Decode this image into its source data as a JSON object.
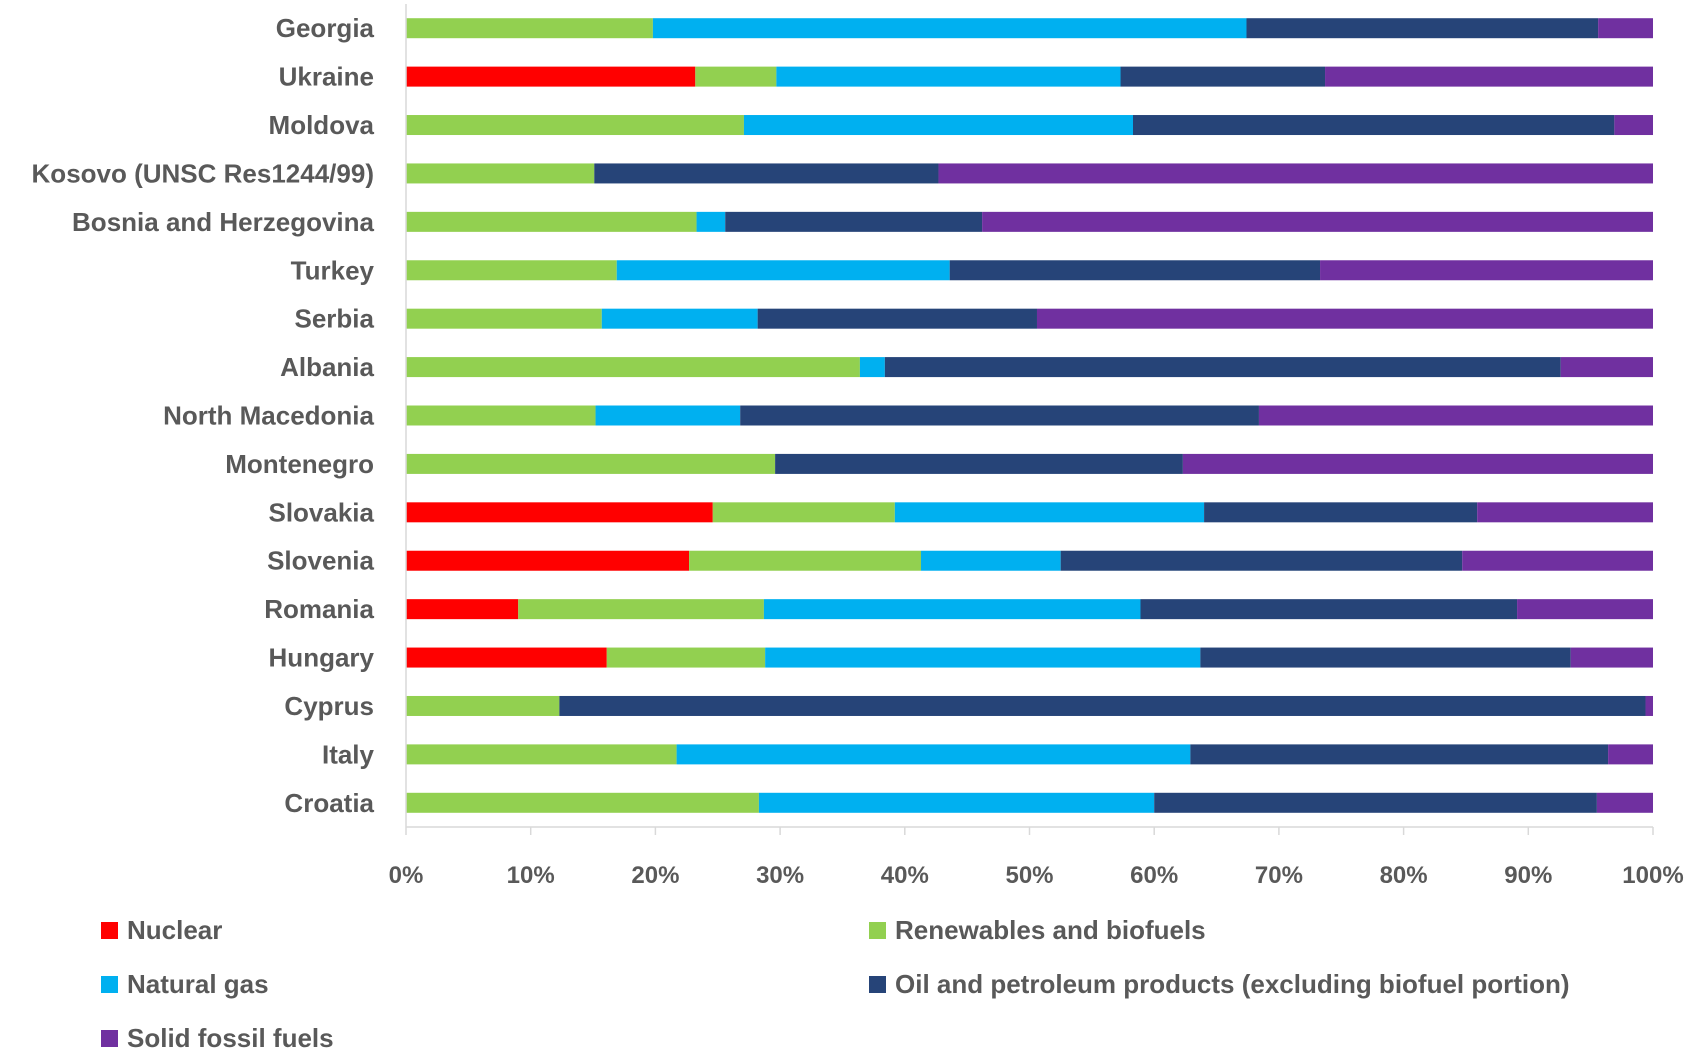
{
  "chart_data": {
    "type": "bar",
    "orientation": "horizontal",
    "stacked": "percent",
    "title": "",
    "xlabel": "",
    "ylabel": "",
    "xlim": [
      0,
      100
    ],
    "xticks": [
      "0%",
      "10%",
      "20%",
      "30%",
      "40%",
      "50%",
      "60%",
      "70%",
      "80%",
      "90%",
      "100%"
    ],
    "grid": false,
    "legend_position": "bottom",
    "categories": [
      "Georgia",
      "Ukraine",
      "Moldova",
      "Kosovo (UNSC Res1244/99)",
      "Bosnia and Herzegovina",
      "Turkey",
      "Serbia",
      "Albania",
      "North Macedonia",
      "Montenegro",
      "Slovakia",
      "Slovenia",
      "Romania",
      "Hungary",
      "Cyprus",
      "Italy",
      "Croatia"
    ],
    "series": [
      {
        "name": "Nuclear",
        "color": "#ff0000",
        "values": [
          0,
          23.2,
          0,
          0,
          0,
          0,
          0,
          0,
          0,
          0,
          24.6,
          22.7,
          9.0,
          16.1,
          0,
          0,
          0
        ]
      },
      {
        "name": "Renewables and biofuels",
        "color": "#92d050",
        "values": [
          19.8,
          6.5,
          27.1,
          15.1,
          23.3,
          16.9,
          15.7,
          36.4,
          15.2,
          29.6,
          14.6,
          18.6,
          19.7,
          12.7,
          12.3,
          21.7,
          28.3
        ]
      },
      {
        "name": "Natural gas",
        "color": "#00b0f0",
        "values": [
          47.6,
          27.6,
          31.2,
          0,
          2.3,
          26.7,
          12.5,
          2.0,
          11.6,
          0,
          24.8,
          11.2,
          30.2,
          34.9,
          0,
          41.2,
          31.7
        ]
      },
      {
        "name": "Oil and petroleum products (excluding biofuel portion)",
        "color": "#264478",
        "values": [
          28.2,
          16.4,
          38.6,
          27.6,
          20.6,
          29.7,
          22.4,
          54.2,
          41.6,
          32.7,
          21.9,
          32.2,
          30.2,
          29.7,
          87.1,
          33.5,
          35.5
        ]
      },
      {
        "name": "Solid fossil fuels",
        "color": "#7030a0",
        "values": [
          4.4,
          26.3,
          3.1,
          57.3,
          53.8,
          26.7,
          49.4,
          7.4,
          31.6,
          37.7,
          14.1,
          15.3,
          10.9,
          6.6,
          0.6,
          3.6,
          4.5
        ]
      }
    ]
  }
}
